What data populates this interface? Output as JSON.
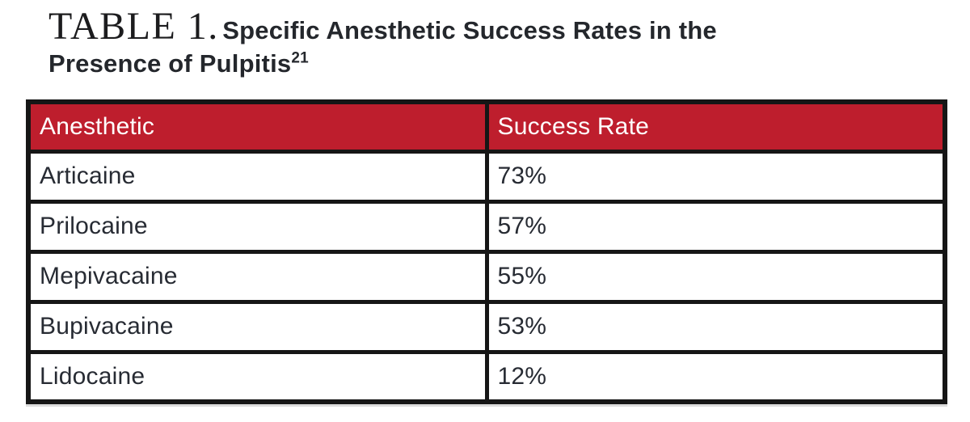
{
  "title": {
    "label": "TABLE 1.",
    "line1": "Specific Anesthetic Success Rates in the",
    "line2": "Presence of Pulpitis",
    "reference": "21"
  },
  "table": {
    "accent_color": "#be1e2d",
    "border_color": "#161616",
    "header_text_color": "#ffffff",
    "body_text_color": "#272b33",
    "columns": [
      "Anesthetic",
      "Success Rate"
    ],
    "rows": [
      {
        "anesthetic": "Articaine",
        "success_rate": "73%"
      },
      {
        "anesthetic": "Prilocaine",
        "success_rate": "57%"
      },
      {
        "anesthetic": "Mepivacaine",
        "success_rate": "55%"
      },
      {
        "anesthetic": "Bupivacaine",
        "success_rate": "53%"
      },
      {
        "anesthetic": "Lidocaine",
        "success_rate": "12%"
      }
    ]
  },
  "chart_data": {
    "type": "table",
    "title": "TABLE 1. Specific Anesthetic Success Rates in the Presence of Pulpitis",
    "reference": "21",
    "columns": [
      "Anesthetic",
      "Success Rate"
    ],
    "categories": [
      "Articaine",
      "Prilocaine",
      "Mepivacaine",
      "Bupivacaine",
      "Lidocaine"
    ],
    "values_percent": [
      73,
      57,
      55,
      53,
      12
    ]
  }
}
